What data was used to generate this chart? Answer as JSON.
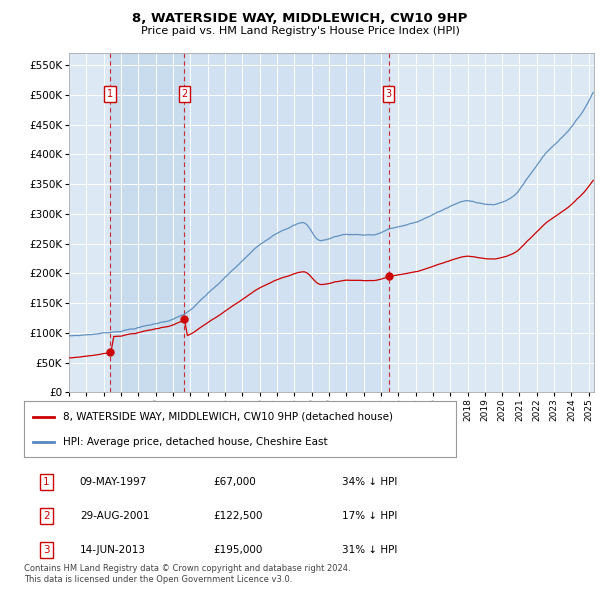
{
  "title1": "8, WATERSIDE WAY, MIDDLEWICH, CW10 9HP",
  "title2": "Price paid vs. HM Land Registry's House Price Index (HPI)",
  "red_color": "#cc0000",
  "blue_color": "#5588bb",
  "blue_fill": "#dce9f5",
  "background_color": "#dce9f5",
  "ylim_max": 570000,
  "yticks": [
    0,
    50000,
    100000,
    150000,
    200000,
    250000,
    300000,
    350000,
    400000,
    450000,
    500000,
    550000
  ],
  "sale_dates": [
    1997.36,
    2001.66,
    2013.45
  ],
  "sale_prices": [
    67000,
    122500,
    195000
  ],
  "sale_labels": [
    "1",
    "2",
    "3"
  ],
  "legend_line1": "8, WATERSIDE WAY, MIDDLEWICH, CW10 9HP (detached house)",
  "legend_line2": "HPI: Average price, detached house, Cheshire East",
  "table_rows": [
    [
      "1",
      "09-MAY-1997",
      "£67,000",
      "34% ↓ HPI"
    ],
    [
      "2",
      "29-AUG-2001",
      "£122,500",
      "17% ↓ HPI"
    ],
    [
      "3",
      "14-JUN-2013",
      "£195,000",
      "31% ↓ HPI"
    ]
  ],
  "footer": "Contains HM Land Registry data © Crown copyright and database right 2024.\nThis data is licensed under the Open Government Licence v3.0.",
  "xmin": 1995.0,
  "xmax": 2025.3
}
